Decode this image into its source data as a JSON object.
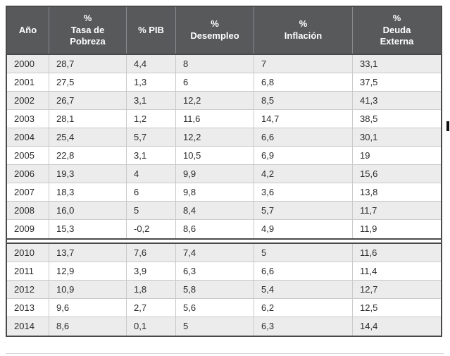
{
  "colors": {
    "header_bg": "#58595b",
    "header_text": "#ffffff",
    "row_alt": "#ececec",
    "row_base": "#ffffff",
    "inner_border": "#c9c9c9",
    "outer_border": "#4a4a4c",
    "body_text": "#2b2b2b"
  },
  "table": {
    "headers": [
      {
        "label": "Año"
      },
      {
        "label": "%\nTasa de\nPobreza"
      },
      {
        "label": "% PIB"
      },
      {
        "label": "%\nDesempleo"
      },
      {
        "label": "%\nInflación"
      },
      {
        "label": "%\nDeuda\nExterna"
      }
    ],
    "groups": [
      {
        "rows": [
          [
            "2000",
            "28,7",
            "4,4",
            "8",
            "7",
            "33,1"
          ],
          [
            "2001",
            "27,5",
            "1,3",
            "6",
            "6,8",
            "37,5"
          ],
          [
            "2002",
            "26,7",
            "3,1",
            "12,2",
            "8,5",
            "41,3"
          ],
          [
            "2003",
            "28,1",
            "1,2",
            "11,6",
            "14,7",
            "38,5"
          ],
          [
            "2004",
            "25,4",
            "5,7",
            "12,2",
            "6,6",
            "30,1"
          ],
          [
            "2005",
            "22,8",
            "3,1",
            "10,5",
            "6,9",
            "19"
          ],
          [
            "2006",
            "19,3",
            "4",
            "9,9",
            "4,2",
            "15,6"
          ],
          [
            "2007",
            "18,3",
            "6",
            "9,8",
            "3,6",
            "13,8"
          ],
          [
            "2008",
            "16,0",
            "5",
            "8,4",
            "5,7",
            "11,7"
          ],
          [
            "2009",
            "15,3",
            "-0,2",
            "8,6",
            "4,9",
            "11,9"
          ]
        ]
      },
      {
        "rows": [
          [
            "2010",
            "13,7",
            "7,6",
            "7,4",
            "5",
            "11,6"
          ],
          [
            "2011",
            "12,9",
            "3,9",
            "6,3",
            "6,6",
            "11,4"
          ],
          [
            "2012",
            "10,9",
            "1,8",
            "5,8",
            "5,4",
            "12,7"
          ],
          [
            "2013",
            "9,6",
            "2,7",
            "5,6",
            "6,2",
            "12,5"
          ],
          [
            "2014",
            "8,6",
            "0,1",
            "5",
            "6,3",
            "14,4"
          ]
        ]
      }
    ]
  },
  "chart_data": {
    "type": "table",
    "title": "",
    "columns": [
      "Año",
      "% Tasa de Pobreza",
      "% PIB",
      "% Desempleo",
      "% Inflación",
      "% Deuda Externa"
    ],
    "rows": [
      [
        2000,
        28.7,
        4.4,
        8,
        7,
        33.1
      ],
      [
        2001,
        27.5,
        1.3,
        6,
        6.8,
        37.5
      ],
      [
        2002,
        26.7,
        3.1,
        12.2,
        8.5,
        41.3
      ],
      [
        2003,
        28.1,
        1.2,
        11.6,
        14.7,
        38.5
      ],
      [
        2004,
        25.4,
        5.7,
        12.2,
        6.6,
        30.1
      ],
      [
        2005,
        22.8,
        3.1,
        10.5,
        6.9,
        19
      ],
      [
        2006,
        19.3,
        4,
        9.9,
        4.2,
        15.6
      ],
      [
        2007,
        18.3,
        6,
        9.8,
        3.6,
        13.8
      ],
      [
        2008,
        16.0,
        5,
        8.4,
        5.7,
        11.7
      ],
      [
        2009,
        15.3,
        -0.2,
        8.6,
        4.9,
        11.9
      ],
      [
        2010,
        13.7,
        7.6,
        7.4,
        5,
        11.6
      ],
      [
        2011,
        12.9,
        3.9,
        6.3,
        6.6,
        11.4
      ],
      [
        2012,
        10.9,
        1.8,
        5.8,
        5.4,
        12.7
      ],
      [
        2013,
        9.6,
        2.7,
        5.6,
        6.2,
        12.5
      ],
      [
        2014,
        8.6,
        0.1,
        5,
        6.3,
        14.4
      ]
    ],
    "layout": {
      "group_break_after_row": 2009,
      "zebra_striping": true,
      "header_style": "dark"
    }
  }
}
